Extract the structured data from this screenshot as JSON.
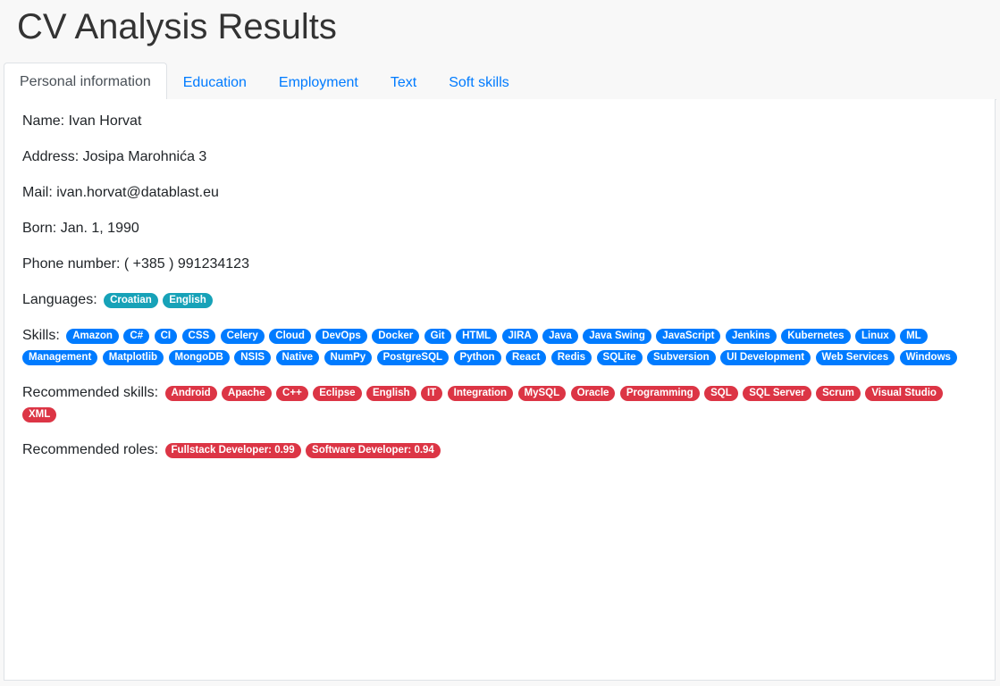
{
  "header": {
    "title": "CV Analysis Results"
  },
  "tabs": [
    {
      "label": "Personal information",
      "active": true
    },
    {
      "label": "Education",
      "active": false
    },
    {
      "label": "Employment",
      "active": false
    },
    {
      "label": "Text",
      "active": false
    },
    {
      "label": "Soft skills",
      "active": false
    }
  ],
  "personal": {
    "name": "Name: Ivan Horvat",
    "address": "Address: Josipa Marohnića 3",
    "mail": "Mail: ivan.horvat@datablast.eu",
    "born": "Born: Jan. 1, 1990",
    "phone": "Phone number: ( +385 ) 991234123",
    "languages_label": "Languages:",
    "languages": [
      "Croatian",
      "English"
    ],
    "skills_label": "Skills:",
    "skills": [
      "Amazon",
      "C#",
      "CI",
      "CSS",
      "Celery",
      "Cloud",
      "DevOps",
      "Docker",
      "Git",
      "HTML",
      "JIRA",
      "Java",
      "Java Swing",
      "JavaScript",
      "Jenkins",
      "Kubernetes",
      "Linux",
      "ML",
      "Management",
      "Matplotlib",
      "MongoDB",
      "NSIS",
      "Native",
      "NumPy",
      "PostgreSQL",
      "Python",
      "React",
      "Redis",
      "SQLite",
      "Subversion",
      "UI Development",
      "Web Services",
      "Windows"
    ],
    "recommended_skills_label": "Recommended skills:",
    "recommended_skills": [
      "Android",
      "Apache",
      "C++",
      "Eclipse",
      "English",
      "IT",
      "Integration",
      "MySQL",
      "Oracle",
      "Programming",
      "SQL",
      "SQL Server",
      "Scrum",
      "Visual Studio",
      "XML"
    ],
    "recommended_roles_label": "Recommended roles:",
    "recommended_roles": [
      "Fullstack Developer: 0.99",
      "Software Developer: 0.94"
    ]
  },
  "colors": {
    "language_badge": "#17a2b8",
    "skill_badge": "#007bff",
    "recommended_badge": "#dc3545",
    "tab_link": "#007bff"
  }
}
